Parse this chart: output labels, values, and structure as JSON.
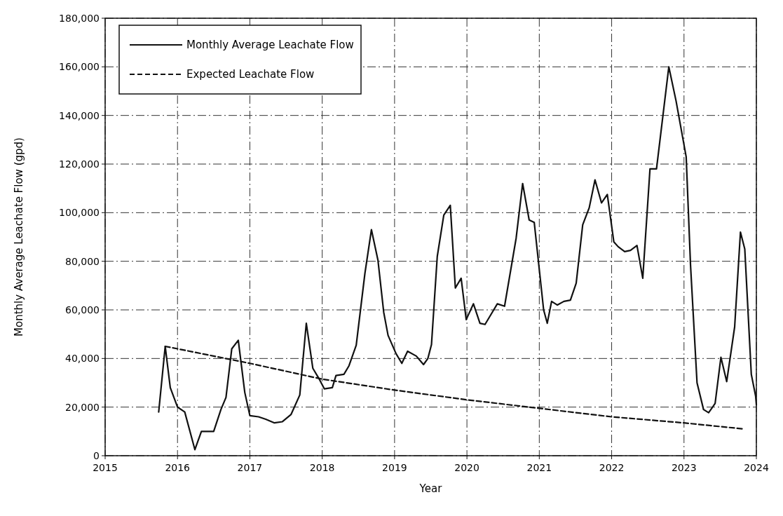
{
  "chart_data": {
    "type": "line",
    "xlabel": "Year",
    "ylabel": "Monthly Average Leachate Flow (gpd)",
    "xlim": [
      2015,
      2024
    ],
    "xticks": [
      2015,
      2016,
      2017,
      2018,
      2019,
      2020,
      2021,
      2022,
      2023,
      2024
    ],
    "ylim": [
      0,
      180000
    ],
    "yticks": [
      {
        "value": 0,
        "label": "0"
      },
      {
        "value": 20000,
        "label": "20,000"
      },
      {
        "value": 40000,
        "label": "40,000"
      },
      {
        "value": 60000,
        "label": "60,000"
      },
      {
        "value": 80000,
        "label": "80,000"
      },
      {
        "value": 100000,
        "label": "100,000"
      },
      {
        "value": 120000,
        "label": "120,000"
      },
      {
        "value": 140000,
        "label": "140,000"
      },
      {
        "value": 160000,
        "label": "160,000"
      },
      {
        "value": 180000,
        "label": "180,000"
      }
    ],
    "grid": true,
    "legend": "top left",
    "series": [
      {
        "name": "Monthly Average Leachate Flow",
        "color": "#111111",
        "line_style": "solid",
        "x": [
          2015.74,
          2015.83,
          2015.9,
          2016.0,
          2016.1,
          2016.24,
          2016.33,
          2016.5,
          2016.6,
          2016.67,
          2016.75,
          2016.84,
          2016.93,
          2017.0,
          2017.12,
          2017.22,
          2017.34,
          2017.45,
          2017.57,
          2017.69,
          2017.78,
          2017.87,
          2017.95,
          2018.03,
          2018.14,
          2018.19,
          2018.3,
          2018.37,
          2018.47,
          2018.59,
          2018.68,
          2018.77,
          2018.85,
          2018.91,
          2019.02,
          2019.1,
          2019.18,
          2019.3,
          2019.4,
          2019.46,
          2019.51,
          2019.59,
          2019.68,
          2019.77,
          2019.84,
          2019.92,
          2019.99,
          2020.09,
          2020.18,
          2020.25,
          2020.35,
          2020.42,
          2020.52,
          2020.68,
          2020.77,
          2020.86,
          2020.93,
          2021.06,
          2021.11,
          2021.17,
          2021.25,
          2021.34,
          2021.43,
          2021.51,
          2021.6,
          2021.69,
          2021.77,
          2021.86,
          2021.94,
          2022.03,
          2022.09,
          2022.18,
          2022.26,
          2022.35,
          2022.43,
          2022.53,
          2022.62,
          2022.79,
          2022.89,
          2023.03,
          2023.09,
          2023.18,
          2023.27,
          2023.34,
          2023.43,
          2023.51,
          2023.59,
          2023.7,
          2023.78,
          2023.84,
          2023.93,
          2023.99,
          2024.0
        ],
        "values": [
          18000,
          45000,
          28000,
          20000,
          18000,
          2500,
          10000,
          10000,
          19000,
          24000,
          44000,
          47500,
          26000,
          16500,
          16000,
          15000,
          13500,
          14000,
          17000,
          25000,
          54500,
          36000,
          32000,
          27500,
          28000,
          33000,
          33500,
          37000,
          45500,
          75000,
          93000,
          80500,
          59000,
          49500,
          42000,
          38000,
          43000,
          41000,
          37500,
          40000,
          45700,
          82000,
          99000,
          103000,
          69000,
          73000,
          56000,
          62500,
          54500,
          54000,
          59000,
          62500,
          61500,
          89500,
          112000,
          97000,
          96000,
          60000,
          54500,
          63500,
          62000,
          63500,
          64000,
          71000,
          95000,
          102000,
          113500,
          104000,
          107500,
          88000,
          86000,
          84000,
          84500,
          86500,
          73000,
          118000,
          118000,
          160000,
          146000,
          123000,
          78500,
          30000,
          19000,
          17700,
          21500,
          40500,
          30500,
          53000,
          92000,
          85000,
          33500,
          24500,
          21000
        ]
      },
      {
        "name": "Expected Leachate Flow",
        "color": "#111111",
        "line_style": "dashed",
        "x": [
          2015.83,
          2016.5,
          2017,
          2018,
          2019,
          2020,
          2021,
          2022,
          2023,
          2023.83
        ],
        "values": [
          45000,
          41000,
          38000,
          31500,
          27000,
          23000,
          19500,
          16000,
          13500,
          11000
        ]
      }
    ]
  }
}
